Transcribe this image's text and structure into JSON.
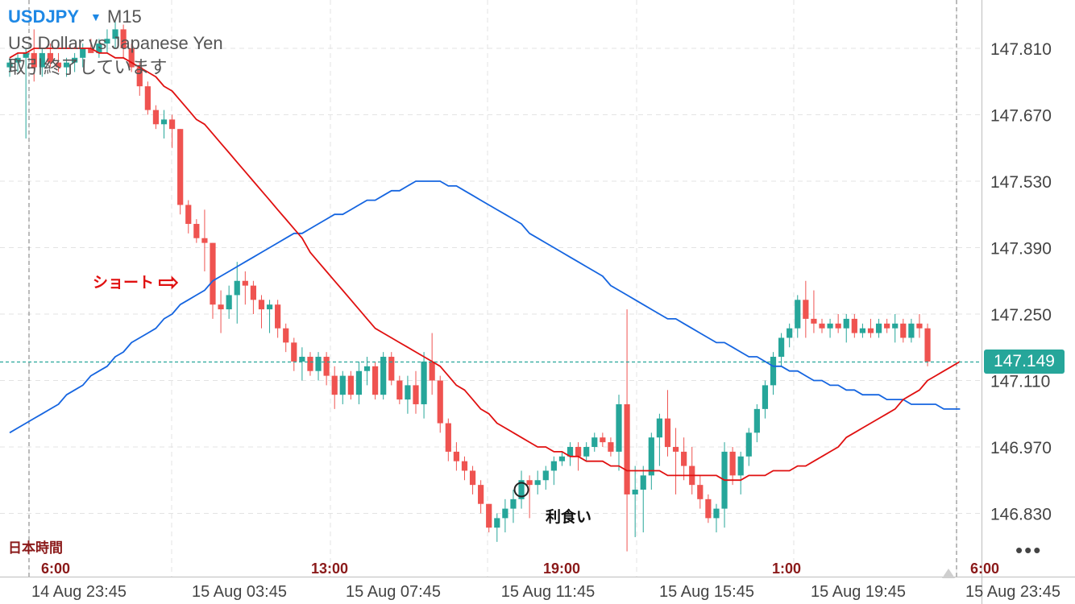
{
  "header": {
    "symbol": "USDJPY",
    "symbol_caret": "▼",
    "timeframe": "M15",
    "instrument_name": "US Dollar vs Japanese Yen",
    "market_status": "取引終了しています"
  },
  "timezone_label": "日本時間",
  "menu_icon": "more-dots-icon",
  "more_label": "•••",
  "colors": {
    "bull": "#26a69a",
    "bear": "#ef5350",
    "ma_fast": "#e01010",
    "ma_slow": "#1565e0",
    "current_price": "#26a69a",
    "jst_labels": "#8b1a1a",
    "annotation_short": "#e01010"
  },
  "chart_data": {
    "type": "candlestick",
    "symbol": "USDJPY",
    "timeframe": "M15",
    "y_range": [
      146.72,
      147.88
    ],
    "y_ticks": [
      "147.810",
      "147.670",
      "147.530",
      "147.390",
      "147.250",
      "147.110",
      "146.970",
      "146.830"
    ],
    "current_price": "147.149",
    "x_tick_labels": [
      "14 Aug 23:45",
      "15 Aug 03:45",
      "15 Aug 07:45",
      "15 Aug 11:45",
      "15 Aug 15:45",
      "15 Aug 19:45",
      "15 Aug 23:45"
    ],
    "jst_tick_labels": [
      "6:00",
      "13:00",
      "19:00",
      "1:00",
      "6:00"
    ],
    "grid": true,
    "candles_ohlc": [
      [
        147.77,
        147.79,
        147.75,
        147.78
      ],
      [
        147.78,
        147.8,
        147.76,
        147.79
      ],
      [
        147.79,
        147.81,
        147.62,
        147.8
      ],
      [
        147.8,
        147.85,
        147.74,
        147.77
      ],
      [
        147.77,
        147.81,
        147.75,
        147.8
      ],
      [
        147.8,
        147.82,
        147.77,
        147.78
      ],
      [
        147.78,
        147.8,
        147.76,
        147.77
      ],
      [
        147.77,
        147.79,
        147.75,
        147.78
      ],
      [
        147.78,
        147.8,
        147.76,
        147.79
      ],
      [
        147.79,
        147.82,
        147.77,
        147.81
      ],
      [
        147.81,
        147.83,
        147.8,
        147.8
      ],
      [
        147.8,
        147.83,
        147.79,
        147.82
      ],
      [
        147.82,
        147.85,
        147.8,
        147.83
      ],
      [
        147.83,
        147.87,
        147.81,
        147.85
      ],
      [
        147.85,
        147.86,
        147.79,
        147.81
      ],
      [
        147.81,
        147.82,
        147.76,
        147.77
      ],
      [
        147.77,
        147.78,
        147.71,
        147.73
      ],
      [
        147.73,
        147.74,
        147.67,
        147.68
      ],
      [
        147.68,
        147.69,
        147.64,
        147.65
      ],
      [
        147.65,
        147.68,
        147.62,
        147.66
      ],
      [
        147.66,
        147.67,
        147.6,
        147.64
      ],
      [
        147.64,
        147.64,
        147.46,
        147.48
      ],
      [
        147.48,
        147.49,
        147.42,
        147.44
      ],
      [
        147.44,
        147.45,
        147.4,
        147.41
      ],
      [
        147.41,
        147.47,
        147.34,
        147.4
      ],
      [
        147.4,
        147.4,
        147.24,
        147.27
      ],
      [
        147.27,
        147.3,
        147.21,
        147.26
      ],
      [
        147.26,
        147.31,
        147.24,
        147.29
      ],
      [
        147.29,
        147.36,
        147.23,
        147.32
      ],
      [
        147.32,
        147.34,
        147.27,
        147.31
      ],
      [
        147.31,
        147.32,
        147.25,
        147.28
      ],
      [
        147.28,
        147.29,
        147.22,
        147.26
      ],
      [
        147.26,
        147.28,
        147.21,
        147.27
      ],
      [
        147.27,
        147.28,
        147.2,
        147.22
      ],
      [
        147.22,
        147.23,
        147.17,
        147.19
      ],
      [
        147.19,
        147.2,
        147.13,
        147.15
      ],
      [
        147.15,
        147.18,
        147.11,
        147.16
      ],
      [
        147.16,
        147.17,
        147.12,
        147.13
      ],
      [
        147.13,
        147.17,
        147.11,
        147.16
      ],
      [
        147.16,
        147.17,
        147.1,
        147.12
      ],
      [
        147.12,
        147.14,
        147.05,
        147.08
      ],
      [
        147.08,
        147.13,
        147.06,
        147.12
      ],
      [
        147.12,
        147.13,
        147.07,
        147.08
      ],
      [
        147.08,
        147.15,
        147.06,
        147.13
      ],
      [
        147.13,
        147.16,
        147.1,
        147.14
      ],
      [
        147.14,
        147.15,
        147.07,
        147.08
      ],
      [
        147.08,
        147.17,
        147.07,
        147.16
      ],
      [
        147.16,
        147.17,
        147.1,
        147.11
      ],
      [
        147.11,
        147.12,
        147.06,
        147.07
      ],
      [
        147.07,
        147.12,
        147.04,
        147.1
      ],
      [
        147.1,
        147.13,
        147.04,
        147.06
      ],
      [
        147.06,
        147.17,
        147.03,
        147.15
      ],
      [
        147.15,
        147.21,
        147.08,
        147.11
      ],
      [
        147.11,
        147.12,
        147.0,
        147.02
      ],
      [
        147.02,
        147.03,
        146.94,
        146.96
      ],
      [
        146.96,
        146.98,
        146.92,
        146.94
      ],
      [
        146.94,
        146.95,
        146.9,
        146.92
      ],
      [
        146.92,
        146.93,
        146.87,
        146.89
      ],
      [
        146.89,
        146.9,
        146.83,
        146.85
      ],
      [
        146.85,
        146.85,
        146.79,
        146.8
      ],
      [
        146.8,
        146.83,
        146.77,
        146.82
      ],
      [
        146.82,
        146.86,
        146.79,
        146.84
      ],
      [
        146.84,
        146.88,
        146.81,
        146.86
      ],
      [
        146.86,
        146.92,
        146.84,
        146.9
      ],
      [
        146.9,
        146.91,
        146.82,
        146.89
      ],
      [
        146.89,
        146.92,
        146.87,
        146.9
      ],
      [
        146.9,
        146.93,
        146.88,
        146.92
      ],
      [
        146.92,
        146.95,
        146.89,
        146.94
      ],
      [
        146.94,
        146.96,
        146.93,
        146.95
      ],
      [
        146.95,
        146.98,
        146.93,
        146.97
      ],
      [
        146.97,
        146.98,
        146.92,
        146.95
      ],
      [
        146.95,
        146.98,
        146.94,
        146.97
      ],
      [
        146.97,
        147.0,
        146.96,
        146.99
      ],
      [
        146.99,
        147.0,
        146.97,
        146.98
      ],
      [
        146.98,
        146.99,
        146.95,
        146.96
      ],
      [
        146.96,
        147.08,
        146.92,
        147.06
      ],
      [
        147.06,
        147.26,
        146.75,
        146.87
      ],
      [
        146.87,
        146.93,
        146.78,
        146.88
      ],
      [
        146.88,
        146.93,
        146.79,
        146.91
      ],
      [
        146.91,
        147.0,
        146.88,
        146.99
      ],
      [
        146.99,
        147.04,
        146.93,
        147.03
      ],
      [
        147.03,
        147.09,
        146.95,
        146.97
      ],
      [
        146.97,
        147.01,
        146.87,
        146.96
      ],
      [
        146.96,
        146.99,
        146.9,
        146.93
      ],
      [
        146.93,
        146.97,
        146.87,
        146.89
      ],
      [
        146.89,
        146.91,
        146.84,
        146.86
      ],
      [
        146.86,
        146.87,
        146.81,
        146.82
      ],
      [
        146.82,
        146.85,
        146.79,
        146.84
      ],
      [
        146.84,
        146.98,
        146.8,
        146.96
      ],
      [
        146.96,
        146.97,
        146.89,
        146.91
      ],
      [
        146.91,
        146.96,
        146.87,
        146.95
      ],
      [
        146.95,
        147.01,
        146.93,
        147.0
      ],
      [
        147.0,
        147.06,
        146.98,
        147.05
      ],
      [
        147.05,
        147.11,
        147.03,
        147.1
      ],
      [
        147.1,
        147.17,
        147.08,
        147.16
      ],
      [
        147.16,
        147.21,
        147.14,
        147.2
      ],
      [
        147.2,
        147.23,
        147.18,
        147.22
      ],
      [
        147.22,
        147.29,
        147.2,
        147.28
      ],
      [
        147.28,
        147.32,
        147.2,
        147.24
      ],
      [
        147.24,
        147.3,
        147.21,
        147.23
      ],
      [
        147.23,
        147.24,
        147.21,
        147.22
      ],
      [
        147.22,
        147.24,
        147.2,
        147.23
      ],
      [
        147.23,
        147.25,
        147.21,
        147.22
      ],
      [
        147.22,
        147.25,
        147.19,
        147.24
      ],
      [
        147.24,
        147.25,
        147.2,
        147.21
      ],
      [
        147.21,
        147.23,
        147.2,
        147.22
      ],
      [
        147.22,
        147.24,
        147.2,
        147.21
      ],
      [
        147.21,
        147.24,
        147.2,
        147.23
      ],
      [
        147.23,
        147.24,
        147.21,
        147.22
      ],
      [
        147.22,
        147.25,
        147.19,
        147.23
      ],
      [
        147.23,
        147.24,
        147.19,
        147.2
      ],
      [
        147.2,
        147.24,
        147.19,
        147.23
      ],
      [
        147.23,
        147.25,
        147.2,
        147.22
      ],
      [
        147.22,
        147.23,
        147.14,
        147.15
      ]
    ],
    "series": [
      {
        "values": [
          147.79,
          147.8,
          147.8,
          147.81,
          147.81,
          147.81,
          147.81,
          147.81,
          147.81,
          147.81,
          147.81,
          147.8,
          147.8,
          147.79,
          147.79,
          147.78,
          147.77,
          147.76,
          147.75,
          147.73,
          147.72,
          147.7,
          147.68,
          147.66,
          147.65,
          147.63,
          147.61,
          147.59,
          147.57,
          147.55,
          147.53,
          147.51,
          147.49,
          147.47,
          147.45,
          147.43,
          147.41,
          147.38,
          147.36,
          147.34,
          147.32,
          147.3,
          147.28,
          147.26,
          147.24,
          147.22,
          147.21,
          147.2,
          147.19,
          147.18,
          147.17,
          147.16,
          147.15,
          147.14,
          147.12,
          147.1,
          147.09,
          147.07,
          147.05,
          147.04,
          147.02,
          147.01,
          147.0,
          146.99,
          146.98,
          146.97,
          146.97,
          146.96,
          146.96,
          146.95,
          146.95,
          146.94,
          146.94,
          146.94,
          146.93,
          146.93,
          146.92,
          146.92,
          146.92,
          146.92,
          146.92,
          146.91,
          146.91,
          146.91,
          146.91,
          146.91,
          146.91,
          146.91,
          146.9,
          146.9,
          146.9,
          146.91,
          146.91,
          146.91,
          146.92,
          146.92,
          146.92,
          146.93,
          146.93,
          146.94,
          146.95,
          146.96,
          146.97,
          146.99,
          147.0,
          147.01,
          147.02,
          147.03,
          147.04,
          147.05,
          147.07,
          147.08,
          147.09,
          147.11,
          147.12,
          147.13,
          147.14,
          147.15
        ]
      },
      {
        "values": [
          147.0,
          147.01,
          147.02,
          147.03,
          147.04,
          147.05,
          147.06,
          147.08,
          147.09,
          147.1,
          147.12,
          147.13,
          147.14,
          147.16,
          147.17,
          147.19,
          147.2,
          147.21,
          147.22,
          147.24,
          147.25,
          147.27,
          147.28,
          147.29,
          147.3,
          147.32,
          147.33,
          147.34,
          147.35,
          147.36,
          147.37,
          147.38,
          147.39,
          147.4,
          147.41,
          147.42,
          147.42,
          147.43,
          147.44,
          147.45,
          147.46,
          147.46,
          147.47,
          147.48,
          147.49,
          147.49,
          147.5,
          147.51,
          147.51,
          147.52,
          147.53,
          147.53,
          147.53,
          147.53,
          147.52,
          147.52,
          147.51,
          147.5,
          147.49,
          147.48,
          147.47,
          147.46,
          147.45,
          147.44,
          147.42,
          147.41,
          147.4,
          147.39,
          147.38,
          147.37,
          147.36,
          147.35,
          147.34,
          147.33,
          147.31,
          147.3,
          147.29,
          147.28,
          147.27,
          147.26,
          147.25,
          147.24,
          147.24,
          147.23,
          147.22,
          147.21,
          147.2,
          147.19,
          147.19,
          147.18,
          147.17,
          147.16,
          147.16,
          147.15,
          147.14,
          147.14,
          147.13,
          147.13,
          147.12,
          147.11,
          147.11,
          147.1,
          147.1,
          147.09,
          147.09,
          147.08,
          147.08,
          147.08,
          147.07,
          147.07,
          147.07,
          147.06,
          147.06,
          147.06,
          147.06,
          147.05,
          147.05,
          147.05
        ]
      }
    ],
    "annotations": {
      "short_text": "ショート",
      "short_arrow": "⇨",
      "short_candle_index": 25,
      "take_profit_text": "利食い",
      "take_profit_candle_index": 63,
      "take_profit_price": 146.88
    }
  }
}
